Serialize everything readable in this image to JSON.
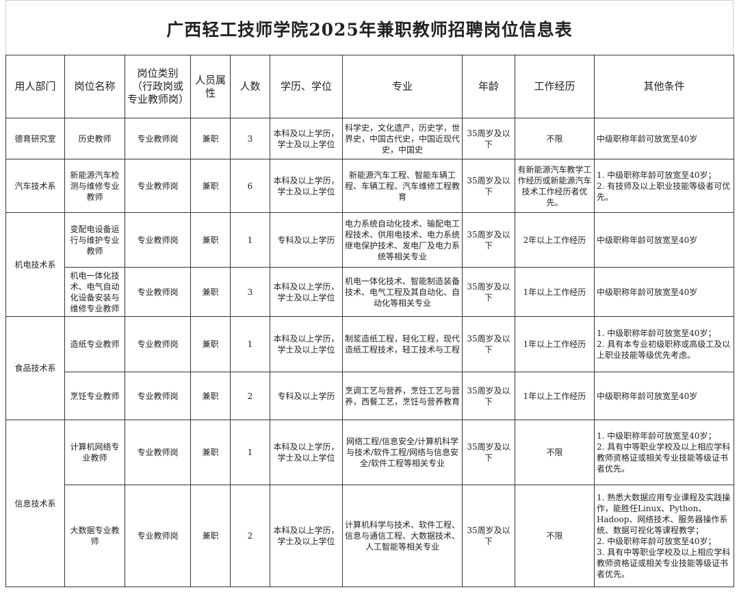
{
  "title": "广西轻工技师学院2025年兼职教师招聘岗位信息表",
  "headers": [
    "用人部门",
    "岗位名称",
    "岗位类别（行政岗或专业教师岗）",
    "人员属性",
    "人数",
    "学历、学位",
    "专业",
    "年龄",
    "工作经历",
    "其他条件"
  ],
  "rows": [
    {
      "dept": "德育研究室",
      "dept_span": 1,
      "position": "历史教师",
      "category": "专业教师岗",
      "type": "兼职",
      "count": "3",
      "education": "本科及以上学历，学士及以上学位",
      "major": "科学史，文化遗产，历史学，世界史，中国古代史，中国近现代史，中国史",
      "age": "35周岁及以下",
      "experience": "不限",
      "other": "中级职称年龄可放宽至40岁"
    },
    {
      "dept": "汽车技术系",
      "dept_span": 1,
      "position": "新能源汽车检测与维修专业教师",
      "category": "专业教师岗",
      "type": "兼职",
      "count": "6",
      "education": "本科及以上学历，学士及以上学位",
      "major": "新能源汽车工程、智能车辆工程、车辆工程、汽车维修工程教育",
      "age": "35周岁及以下",
      "experience": "有新能源汽车教学工作经历或新能源汽车技术工作经历者优先。",
      "other": "1. 中级职称年龄可放宽至40岁；\n2. 有技师及以上职业技能等级者可优先。"
    },
    {
      "dept": "机电技术系",
      "dept_span": 2,
      "position": "变配电设备运行与维护专业教师",
      "category": "专业教师岗",
      "type": "兼职",
      "count": "1",
      "education": "专科及以上学历",
      "major": "电力系统自动化技术、输配电工程技术、供用电技术、电力系统继电保护技术、发电厂及电力系统等相关专业",
      "age": "35周岁及以下",
      "experience": "2年以上工作经历",
      "other": "中级职称年龄可放宽至40岁"
    },
    {
      "dept": "",
      "dept_span": 0,
      "position": "机电一体化技术、电气自动化设备安装与维修专业教师",
      "category": "专业教师岗",
      "type": "兼职",
      "count": "3",
      "education": "本科及以上学历，学士及以上学位",
      "major": "机电一体化技术、智能制造装备技术、电气工程及其自动化、自动化等相关专业",
      "age": "35周岁及以下",
      "experience": "1年以上工作经历",
      "other": "中级职称年龄可放宽至40岁"
    },
    {
      "dept": "食品技术系",
      "dept_span": 2,
      "position": "造纸专业教师",
      "category": "专业教师岗",
      "type": "兼职",
      "count": "1",
      "education": "本科及以上学历，学士及以上学位",
      "major": "制浆造纸工程，轻化工程，现代造纸工程技术，轻工技术与工程",
      "age": "35周岁及以下",
      "experience": "1年以上工作经历",
      "other": "1. 中级职称年龄可放宽至40岁；\n2. 具有本专业初级职称或高级工及以上职业技能等级优先考虑。"
    },
    {
      "dept": "",
      "dept_span": 0,
      "position": "烹饪专业教师",
      "category": "专业教师岗",
      "type": "兼职",
      "count": "2",
      "education": "专科及以上学历",
      "major": "烹调工艺与营养，烹饪工艺与营养，西餐工艺，烹饪与营养教育",
      "age": "35周岁及以下",
      "experience": "1年以上工作经历",
      "other": "中级职称年龄可放宽至40岁"
    },
    {
      "dept": "信息技术系",
      "dept_span": 2,
      "position": "计算机网络专业教师",
      "category": "专业教师岗",
      "type": "兼职",
      "count": "1",
      "education": "本科及以上学历，学士及以上学位",
      "major": "网络工程/信息安全/计算机科学与技术/软件工程/网络与信息安全/软件工程等相关专业",
      "age": "35周岁及以下",
      "experience": "不限",
      "other": "1. 中级职称年龄可放宽至40岁；\n2. 具有中等职业学校及以上相应学科教师资格证或相关专业技能等级证书者优先。"
    },
    {
      "dept": "",
      "dept_span": 0,
      "position": "大数据专业教师",
      "category": "专业教师岗",
      "type": "兼职",
      "count": "2",
      "education": "本科及以上学历，学士及以上学位",
      "major": "计算机科学与技术、软件工程、信息与通信工程、大数据技术、人工智能等相关专业",
      "age": "35周岁及以下",
      "experience": "不限",
      "other": "1. 熟悉大数据应用专业课程及实践操作，能胜任Linux、Python、Hadoop、网络技术、服务器操作系统、数据可视化等课程教学；\n2. 中级职称年龄可放宽至40岁；\n3. 具有中等职业学校及以上相应学科教师资格证或相关专业技能等级证书者优先。"
    }
  ]
}
